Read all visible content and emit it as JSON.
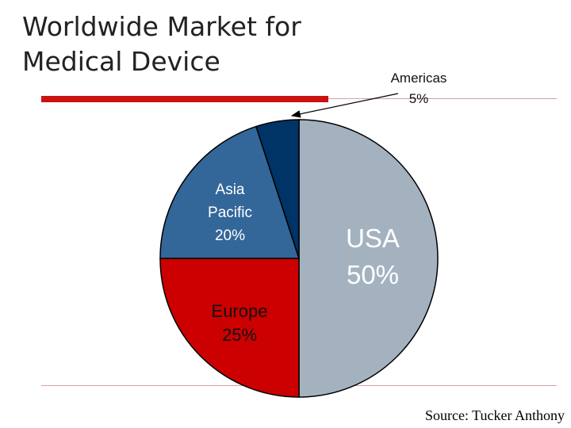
{
  "slide": {
    "title_line1": "Worldwide Market for",
    "title_line2": "Medical Device",
    "source": "Source: Tucker Anthony"
  },
  "colors": {
    "accent_bar": "#cc1111",
    "text": "#222222"
  },
  "chart_data": {
    "type": "pie",
    "start_angle_deg": 0,
    "direction": "clockwise",
    "slices": [
      {
        "label": "USA",
        "value": 50,
        "value_label": "50%",
        "color": "#a4b2c0",
        "label_color": "#ffffff"
      },
      {
        "label": "Europe",
        "value": 25,
        "value_label": "25%",
        "color": "#cc0000",
        "label_color": "#111111"
      },
      {
        "label": "Asia\nPacific",
        "value": 20,
        "value_label": "20%",
        "color": "#336699",
        "label_color": "#ffffff"
      },
      {
        "label": "Americas",
        "value": 5,
        "value_label": "5%",
        "color": "#003366",
        "label_color": "#111111"
      }
    ]
  }
}
